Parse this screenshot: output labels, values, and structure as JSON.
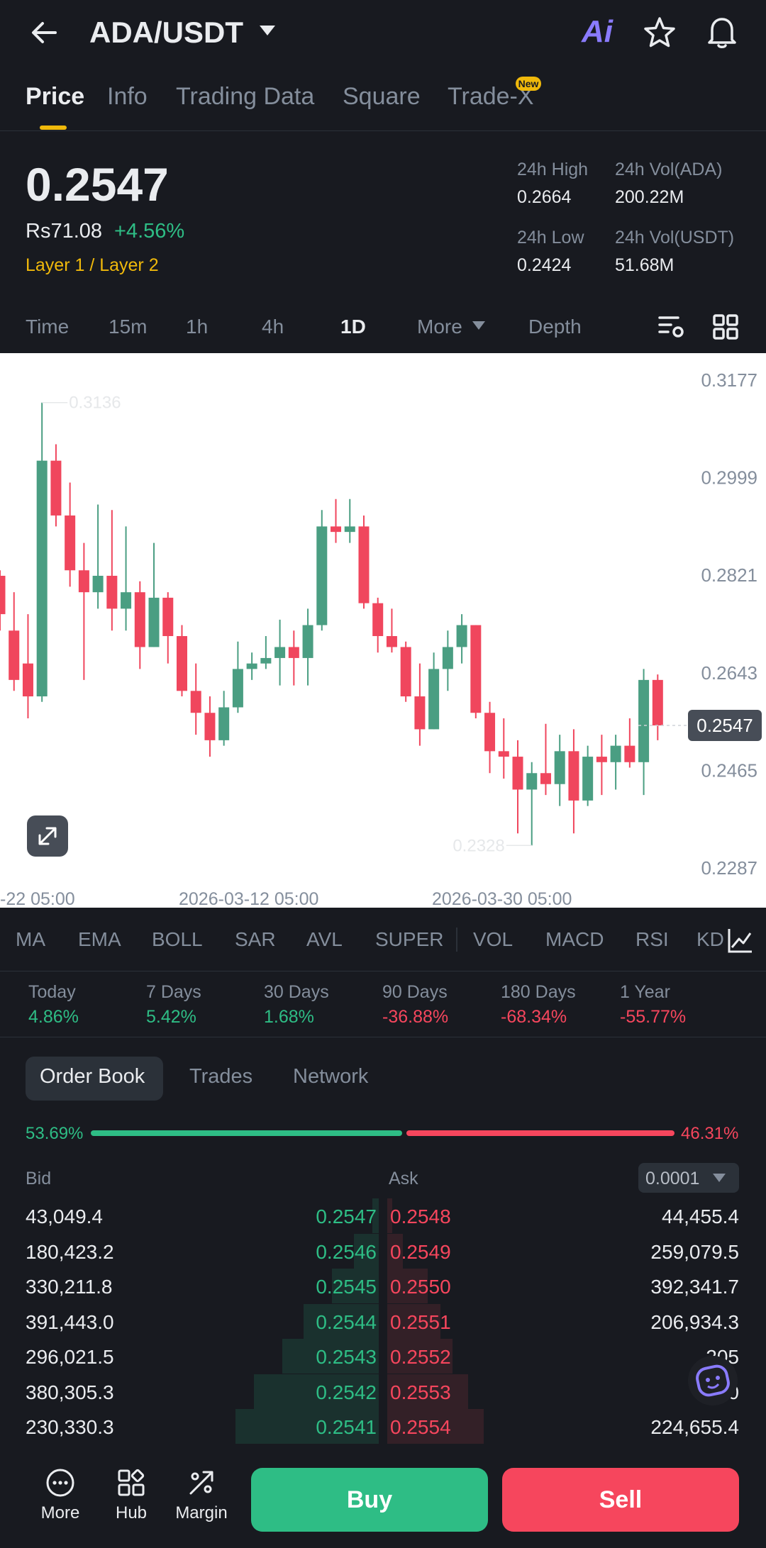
{
  "header": {
    "pair": "ADA/USDT",
    "ai_label": "Ai"
  },
  "tabs": [
    "Price",
    "Info",
    "Trading Data",
    "Square",
    "Trade-X"
  ],
  "new_badge": "New",
  "ticker": {
    "price": "0.2547",
    "fiat": "Rs71.08",
    "change": "+4.56%",
    "tags": "Layer 1 / Layer 2",
    "high_label": "24h High",
    "high": "0.2664",
    "vol_base_label": "24h Vol(ADA)",
    "vol_base": "200.22M",
    "low_label": "24h Low",
    "low": "0.2424",
    "vol_quote_label": "24h Vol(USDT)",
    "vol_quote": "51.68M"
  },
  "timeframes": [
    "Time",
    "15m",
    "1h",
    "4h",
    "1D",
    "More",
    "Depth"
  ],
  "active_timeframe": "1D",
  "chart_data": {
    "type": "candlestick",
    "y_ticks": [
      "0.3177",
      "0.2999",
      "0.2821",
      "0.2643",
      "0.2465",
      "0.2287"
    ],
    "ylim": [
      0.2287,
      0.3177
    ],
    "x_ticks": [
      "-22 05:00",
      "2026-03-12 05:00",
      "2026-03-30 05:00"
    ],
    "last_price_label": "0.2547",
    "high_marker": "0.3136",
    "low_marker": "0.2328",
    "colors": {
      "up": "#4a9e82",
      "down": "#f0465d"
    },
    "candles": [
      {
        "o": 0.282,
        "h": 0.283,
        "l": 0.272,
        "c": 0.275
      },
      {
        "o": 0.272,
        "h": 0.279,
        "l": 0.261,
        "c": 0.263
      },
      {
        "o": 0.266,
        "h": 0.275,
        "l": 0.256,
        "c": 0.26
      },
      {
        "o": 0.26,
        "h": 0.3136,
        "l": 0.259,
        "c": 0.303
      },
      {
        "o": 0.303,
        "h": 0.306,
        "l": 0.291,
        "c": 0.293
      },
      {
        "o": 0.293,
        "h": 0.299,
        "l": 0.28,
        "c": 0.283
      },
      {
        "o": 0.283,
        "h": 0.288,
        "l": 0.263,
        "c": 0.279
      },
      {
        "o": 0.279,
        "h": 0.295,
        "l": 0.276,
        "c": 0.282
      },
      {
        "o": 0.282,
        "h": 0.294,
        "l": 0.272,
        "c": 0.276
      },
      {
        "o": 0.276,
        "h": 0.291,
        "l": 0.272,
        "c": 0.279
      },
      {
        "o": 0.279,
        "h": 0.281,
        "l": 0.265,
        "c": 0.269
      },
      {
        "o": 0.269,
        "h": 0.288,
        "l": 0.269,
        "c": 0.278
      },
      {
        "o": 0.278,
        "h": 0.279,
        "l": 0.266,
        "c": 0.271
      },
      {
        "o": 0.271,
        "h": 0.273,
        "l": 0.26,
        "c": 0.261
      },
      {
        "o": 0.261,
        "h": 0.266,
        "l": 0.253,
        "c": 0.257
      },
      {
        "o": 0.257,
        "h": 0.26,
        "l": 0.249,
        "c": 0.252
      },
      {
        "o": 0.252,
        "h": 0.261,
        "l": 0.251,
        "c": 0.258
      },
      {
        "o": 0.258,
        "h": 0.27,
        "l": 0.257,
        "c": 0.265
      },
      {
        "o": 0.265,
        "h": 0.268,
        "l": 0.263,
        "c": 0.266
      },
      {
        "o": 0.266,
        "h": 0.271,
        "l": 0.265,
        "c": 0.267
      },
      {
        "o": 0.267,
        "h": 0.274,
        "l": 0.262,
        "c": 0.269
      },
      {
        "o": 0.269,
        "h": 0.272,
        "l": 0.262,
        "c": 0.267
      },
      {
        "o": 0.267,
        "h": 0.276,
        "l": 0.262,
        "c": 0.273
      },
      {
        "o": 0.273,
        "h": 0.294,
        "l": 0.272,
        "c": 0.291
      },
      {
        "o": 0.291,
        "h": 0.296,
        "l": 0.288,
        "c": 0.29
      },
      {
        "o": 0.29,
        "h": 0.296,
        "l": 0.288,
        "c": 0.291
      },
      {
        "o": 0.291,
        "h": 0.293,
        "l": 0.276,
        "c": 0.277
      },
      {
        "o": 0.277,
        "h": 0.278,
        "l": 0.268,
        "c": 0.271
      },
      {
        "o": 0.271,
        "h": 0.276,
        "l": 0.268,
        "c": 0.269
      },
      {
        "o": 0.269,
        "h": 0.27,
        "l": 0.259,
        "c": 0.26
      },
      {
        "o": 0.26,
        "h": 0.266,
        "l": 0.251,
        "c": 0.254
      },
      {
        "o": 0.254,
        "h": 0.268,
        "l": 0.254,
        "c": 0.265
      },
      {
        "o": 0.265,
        "h": 0.272,
        "l": 0.261,
        "c": 0.269
      },
      {
        "o": 0.269,
        "h": 0.275,
        "l": 0.266,
        "c": 0.273
      },
      {
        "o": 0.273,
        "h": 0.273,
        "l": 0.256,
        "c": 0.257
      },
      {
        "o": 0.257,
        "h": 0.259,
        "l": 0.246,
        "c": 0.25
      },
      {
        "o": 0.25,
        "h": 0.256,
        "l": 0.245,
        "c": 0.249
      },
      {
        "o": 0.249,
        "h": 0.252,
        "l": 0.235,
        "c": 0.243
      },
      {
        "o": 0.243,
        "h": 0.248,
        "l": 0.2328,
        "c": 0.246
      },
      {
        "o": 0.246,
        "h": 0.255,
        "l": 0.242,
        "c": 0.244
      },
      {
        "o": 0.244,
        "h": 0.253,
        "l": 0.24,
        "c": 0.25
      },
      {
        "o": 0.25,
        "h": 0.254,
        "l": 0.235,
        "c": 0.241
      },
      {
        "o": 0.241,
        "h": 0.251,
        "l": 0.24,
        "c": 0.249
      },
      {
        "o": 0.249,
        "h": 0.253,
        "l": 0.242,
        "c": 0.248
      },
      {
        "o": 0.248,
        "h": 0.253,
        "l": 0.243,
        "c": 0.251
      },
      {
        "o": 0.251,
        "h": 0.256,
        "l": 0.247,
        "c": 0.248
      },
      {
        "o": 0.248,
        "h": 0.265,
        "l": 0.242,
        "c": 0.263
      },
      {
        "o": 0.263,
        "h": 0.264,
        "l": 0.252,
        "c": 0.2547
      }
    ]
  },
  "indicators": [
    "MA",
    "EMA",
    "BOLL",
    "SAR",
    "AVL",
    "SUPER",
    "VOL",
    "MACD",
    "RSI",
    "KD"
  ],
  "performance": [
    {
      "label": "Today",
      "value": "4.86%",
      "dir": "up"
    },
    {
      "label": "7 Days",
      "value": "5.42%",
      "dir": "up"
    },
    {
      "label": "30 Days",
      "value": "1.68%",
      "dir": "up"
    },
    {
      "label": "90 Days",
      "value": "-36.88%",
      "dir": "down"
    },
    {
      "label": "180 Days",
      "value": "-68.34%",
      "dir": "down"
    },
    {
      "label": "1 Year",
      "value": "-55.77%",
      "dir": "down"
    }
  ],
  "orderbook": {
    "tabs": [
      "Order Book",
      "Trades",
      "Network"
    ],
    "bid_ratio": "53.69%",
    "ask_ratio": "46.31%",
    "bid_ratio_value": 53.69,
    "bid_label": "Bid",
    "ask_label": "Ask",
    "precision": "0.0001",
    "rows": [
      {
        "bid_qty": "43,049.4",
        "bid_price": "0.2547",
        "ask_price": "0.2548",
        "ask_qty": "44,455.4",
        "bid_depth": 0.04,
        "ask_depth": 0.03
      },
      {
        "bid_qty": "180,423.2",
        "bid_price": "0.2546",
        "ask_price": "0.2549",
        "ask_qty": "259,079.5",
        "bid_depth": 0.16,
        "ask_depth": 0.1
      },
      {
        "bid_qty": "330,211.8",
        "bid_price": "0.2545",
        "ask_price": "0.2550",
        "ask_qty": "392,341.7",
        "bid_depth": 0.3,
        "ask_depth": 0.26
      },
      {
        "bid_qty": "391,443.0",
        "bid_price": "0.2544",
        "ask_price": "0.2551",
        "ask_qty": "206,934.3",
        "bid_depth": 0.48,
        "ask_depth": 0.34
      },
      {
        "bid_qty": "296,021.5",
        "bid_price": "0.2543",
        "ask_price": "0.2552",
        "ask_qty": "205",
        "bid_depth": 0.62,
        "ask_depth": 0.42
      },
      {
        "bid_qty": "380,305.3",
        "bid_price": "0.2542",
        "ask_price": "0.2553",
        "ask_qty": "200",
        "bid_depth": 0.8,
        "ask_depth": 0.52
      },
      {
        "bid_qty": "230,330.3",
        "bid_price": "0.2541",
        "ask_price": "0.2554",
        "ask_qty": "224,655.4",
        "bid_depth": 0.92,
        "ask_depth": 0.62
      }
    ]
  },
  "bottom_nav": {
    "more": "More",
    "hub": "Hub",
    "margin": "Margin",
    "buy": "Buy",
    "sell": "Sell"
  }
}
